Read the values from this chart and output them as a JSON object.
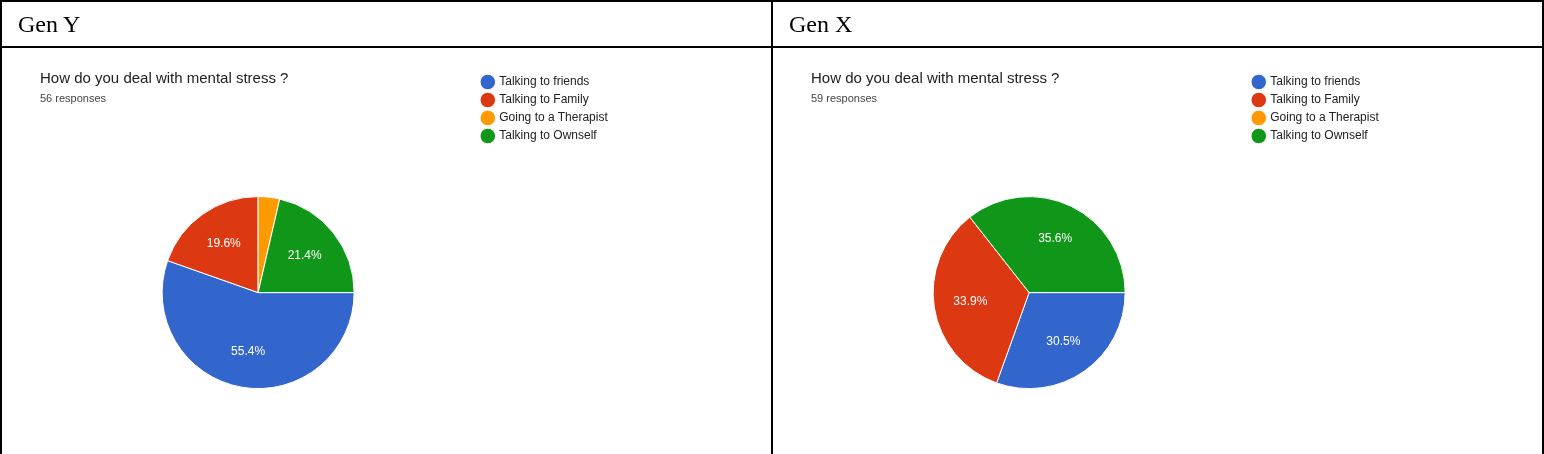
{
  "chart_data": [
    {
      "type": "pie",
      "annotations": [
        "Gen Y"
      ],
      "title": "How do you deal with mental stress ?",
      "subtitle": "56 responses",
      "categories": [
        "Talking to friends",
        "Talking to Family",
        "Going to a Therapist",
        "Talking to Ownself"
      ],
      "values": [
        55.4,
        19.6,
        3.6,
        21.4
      ],
      "value_labels": [
        "55.4%",
        "19.6%",
        null,
        "21.4%"
      ],
      "colors": [
        "#3366cc",
        "#dc3912",
        "#ff9900",
        "#109618"
      ],
      "legend": "right"
    },
    {
      "type": "pie",
      "annotations": [
        "Gen X"
      ],
      "title": "How do you deal with mental stress ?",
      "subtitle": "59 responses",
      "categories": [
        "Talking to friends",
        "Talking to Family",
        "Going to a Therapist",
        "Talking to Ownself"
      ],
      "values": [
        30.5,
        33.9,
        0,
        35.6
      ],
      "value_labels": [
        "30.5%",
        "33.9%",
        null,
        "35.6%"
      ],
      "colors": [
        "#3366cc",
        "#dc3912",
        "#ff9900",
        "#109618"
      ],
      "legend": "right"
    }
  ]
}
